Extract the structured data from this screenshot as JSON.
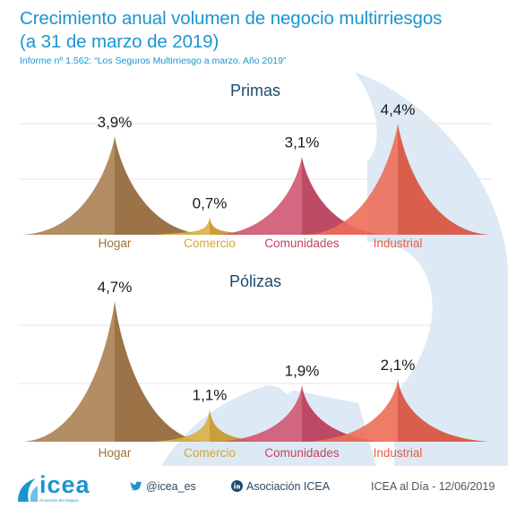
{
  "title": {
    "line1": "Crecimiento anual volumen de negocio multirriesgos",
    "line2": "(a 31 de marzo de 2019)"
  },
  "subtitle": "Informe nº 1.562: “Los Seguros Multirriesgo a marzo. Año 2019”",
  "colors": {
    "Hogar": "#a0703c",
    "Comercio": "#d5a52e",
    "Comunidades": "#c8415f",
    "Industrial": "#eb5a42",
    "title": "#1b95cf",
    "panel_title": "#1d4a6b",
    "background_mark": "#dde9f4"
  },
  "chart_data": [
    {
      "type": "area",
      "title": "Primas",
      "categories": [
        "Hogar",
        "Comercio",
        "Comunidades",
        "Industrial"
      ],
      "values": [
        3.9,
        0.7,
        3.1,
        4.4
      ],
      "labels": [
        "3,9%",
        "0,7%",
        "3,1%",
        "4,4%"
      ],
      "unit": "%",
      "ylim": [
        0,
        4.4
      ]
    },
    {
      "type": "area",
      "title": "Pólizas",
      "categories": [
        "Hogar",
        "Comercio",
        "Comunidades",
        "Industrial"
      ],
      "values": [
        4.7,
        1.1,
        1.9,
        2.1
      ],
      "labels": [
        "4,7%",
        "1,1%",
        "1,9%",
        "2,1%"
      ],
      "unit": "%",
      "ylim": [
        0,
        4.7
      ]
    }
  ],
  "footer": {
    "logo": "icea",
    "logo_tagline": "Al servicio del Seguro",
    "twitter": "@icea_es",
    "linkedin": "Asociación ICEA",
    "date": "ICEA al Día - 12/06/2019",
    "twitter_icon": "twitter-bird-icon",
    "linkedin_icon": "linkedin-icon"
  }
}
